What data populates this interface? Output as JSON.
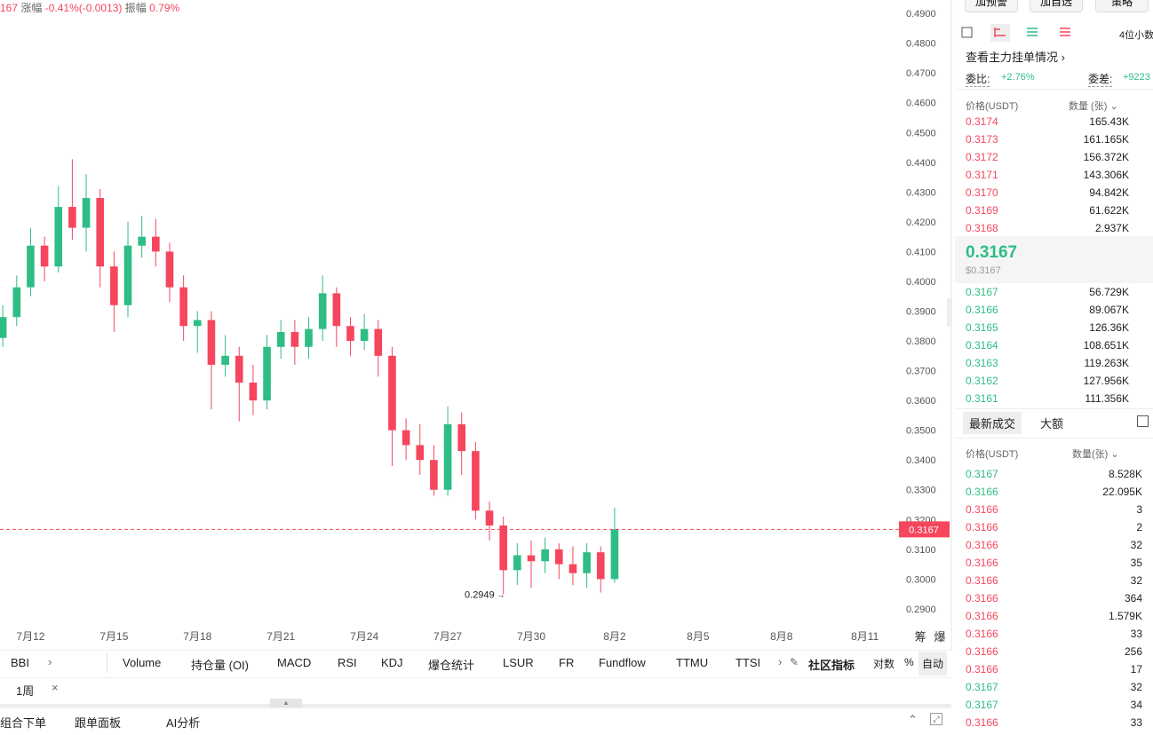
{
  "header": {
    "price_fragment": "167",
    "change_label": "涨幅",
    "change": "-0.41%(-0.0013)",
    "amplitude_label": "振幅",
    "amplitude": "0.79%"
  },
  "chart_data": {
    "type": "candlestick",
    "x": [
      11,
      11.5,
      12,
      12.5,
      13,
      13.5,
      14,
      14.5,
      15,
      15.5,
      16,
      16.5,
      17,
      17.5,
      18,
      18.5,
      19,
      19.5,
      20,
      20.5,
      21,
      21.5,
      22,
      22.5,
      23,
      23.5,
      24,
      24.5,
      25,
      25.5,
      26,
      26.5,
      27,
      27.5,
      28,
      28.5,
      29,
      29.5,
      30,
      30.5,
      31,
      31.5,
      32,
      32.5,
      33
    ],
    "open": [
      0.381,
      0.388,
      0.398,
      0.412,
      0.405,
      0.425,
      0.418,
      0.428,
      0.405,
      0.392,
      0.412,
      0.415,
      0.41,
      0.398,
      0.385,
      0.387,
      0.372,
      0.375,
      0.366,
      0.36,
      0.378,
      0.383,
      0.378,
      0.384,
      0.396,
      0.385,
      0.38,
      0.384,
      0.375,
      0.35,
      0.345,
      0.34,
      0.33,
      0.352,
      0.343,
      0.323,
      0.318,
      0.303,
      0.308,
      0.306,
      0.31,
      0.305,
      0.302,
      0.309,
      0.3
    ],
    "high": [
      0.392,
      0.402,
      0.418,
      0.415,
      0.432,
      0.441,
      0.436,
      0.431,
      0.41,
      0.42,
      0.422,
      0.421,
      0.413,
      0.402,
      0.39,
      0.39,
      0.382,
      0.378,
      0.372,
      0.382,
      0.387,
      0.387,
      0.388,
      0.402,
      0.398,
      0.388,
      0.389,
      0.387,
      0.378,
      0.354,
      0.352,
      0.345,
      0.358,
      0.356,
      0.346,
      0.326,
      0.321,
      0.312,
      0.313,
      0.314,
      0.312,
      0.311,
      0.312,
      0.311,
      0.324
    ],
    "low": [
      0.378,
      0.385,
      0.395,
      0.4,
      0.403,
      0.414,
      0.41,
      0.398,
      0.383,
      0.388,
      0.408,
      0.405,
      0.393,
      0.38,
      0.376,
      0.357,
      0.368,
      0.353,
      0.355,
      0.357,
      0.374,
      0.372,
      0.374,
      0.38,
      0.378,
      0.375,
      0.377,
      0.368,
      0.338,
      0.34,
      0.335,
      0.328,
      0.328,
      0.335,
      0.32,
      0.313,
      0.2949,
      0.298,
      0.297,
      0.302,
      0.3,
      0.298,
      0.297,
      0.2955,
      0.2988
    ],
    "close": [
      0.388,
      0.398,
      0.412,
      0.405,
      0.425,
      0.418,
      0.428,
      0.405,
      0.392,
      0.412,
      0.415,
      0.41,
      0.398,
      0.385,
      0.387,
      0.372,
      0.375,
      0.366,
      0.36,
      0.378,
      0.383,
      0.378,
      0.384,
      0.396,
      0.385,
      0.38,
      0.384,
      0.375,
      0.35,
      0.345,
      0.34,
      0.33,
      0.352,
      0.343,
      0.323,
      0.318,
      0.303,
      0.308,
      0.306,
      0.31,
      0.305,
      0.302,
      0.309,
      0.3,
      0.3167
    ],
    "up_color": "#2ebd85",
    "down_color": "#f6465d",
    "low_marker_index": 36,
    "xlim": [
      10.9,
      43.0
    ],
    "xticks": [
      {
        "value": 12,
        "label": "7月12"
      },
      {
        "value": 15,
        "label": "7月15"
      },
      {
        "value": 18,
        "label": "7月18"
      },
      {
        "value": 21,
        "label": "7月21"
      },
      {
        "value": 24,
        "label": "7月24"
      },
      {
        "value": 27,
        "label": "7月27"
      },
      {
        "value": 30,
        "label": "7月30"
      },
      {
        "value": 33,
        "label": "8月2"
      },
      {
        "value": 36,
        "label": "8月5"
      },
      {
        "value": 39,
        "label": "8月8"
      },
      {
        "value": 42,
        "label": "8月11"
      }
    ],
    "ylim": [
      0.2858,
      0.4945
    ],
    "yticks": [
      {
        "value": 0.29,
        "label": "0.2900"
      },
      {
        "value": 0.3,
        "label": "0.3000"
      },
      {
        "value": 0.31,
        "label": "0.3100"
      },
      {
        "value": 0.32,
        "label": "0.3200"
      },
      {
        "value": 0.33,
        "label": "0.3300"
      },
      {
        "value": 0.34,
        "label": "0.3400"
      },
      {
        "value": 0.35,
        "label": "0.3500"
      },
      {
        "value": 0.36,
        "label": "0.3600"
      },
      {
        "value": 0.37,
        "label": "0.3700"
      },
      {
        "value": 0.38,
        "label": "0.3800"
      },
      {
        "value": 0.39,
        "label": "0.3900"
      },
      {
        "value": 0.4,
        "label": "0.4000"
      },
      {
        "value": 0.41,
        "label": "0.4100"
      },
      {
        "value": 0.42,
        "label": "0.4200"
      },
      {
        "value": 0.43,
        "label": "0.4300"
      },
      {
        "value": 0.44,
        "label": "0.4400"
      },
      {
        "value": 0.45,
        "label": "0.4500"
      },
      {
        "value": 0.46,
        "label": "0.4600"
      },
      {
        "value": 0.47,
        "label": "0.4700"
      },
      {
        "value": 0.48,
        "label": "0.4800"
      },
      {
        "value": 0.49,
        "label": "0.4900"
      }
    ],
    "grid": false
  },
  "chart_side_labels": [
    "筹",
    "爆"
  ],
  "indicator_tabs": [
    "BBI",
    "Volume",
    "持仓量 (OI)",
    "MACD",
    "RSI",
    "KDJ",
    "爆仓统计",
    "LSUR",
    "FR",
    "Fundflow",
    "TTMU",
    "TTSI"
  ],
  "indicator_tools": [
    "社区指标",
    "对数",
    "%",
    "自动"
  ],
  "interval_tab": "1周",
  "bottom_tabs": [
    "组合下单",
    "跟单面板",
    "AI分析"
  ],
  "top_buttons": [
    "加预警",
    "加自选",
    "策略"
  ],
  "order_book": {
    "decimals": "4位小数",
    "main_orders": "查看主力挂单情况",
    "ratio_label": "委比:",
    "ratio": "+2.76%",
    "diff_label": "委差:",
    "diff": "+9223",
    "price_header": "价格(USDT)",
    "qty_header": "数量 (张)",
    "asks": [
      [
        "0.3174",
        "165.43K"
      ],
      [
        "0.3173",
        "161.165K"
      ],
      [
        "0.3172",
        "156.372K"
      ],
      [
        "0.3171",
        "143.306K"
      ],
      [
        "0.3170",
        "94.842K"
      ],
      [
        "0.3169",
        "61.622K"
      ],
      [
        "0.3168",
        "2.937K"
      ]
    ],
    "mid_price": "0.3167",
    "mid_usd": "$0.3167",
    "bids": [
      [
        "0.3167",
        "56.729K"
      ],
      [
        "0.3166",
        "89.067K"
      ],
      [
        "0.3165",
        "126.36K"
      ],
      [
        "0.3164",
        "108.651K"
      ],
      [
        "0.3163",
        "119.263K"
      ],
      [
        "0.3162",
        "127.956K"
      ],
      [
        "0.3161",
        "111.356K"
      ]
    ]
  },
  "trades": {
    "tabs": [
      "最新成交",
      "大额"
    ],
    "price_header": "价格(USDT)",
    "qty_header": "数量(张)",
    "rows": [
      {
        "price": "0.3167",
        "qty": "8.528K",
        "side": "buy"
      },
      {
        "price": "0.3166",
        "qty": "22.095K",
        "side": "buy"
      },
      {
        "price": "0.3166",
        "qty": "3",
        "side": "sell"
      },
      {
        "price": "0.3166",
        "qty": "2",
        "side": "sell"
      },
      {
        "price": "0.3166",
        "qty": "32",
        "side": "sell"
      },
      {
        "price": "0.3166",
        "qty": "35",
        "side": "sell"
      },
      {
        "price": "0.3166",
        "qty": "32",
        "side": "sell"
      },
      {
        "price": "0.3166",
        "qty": "364",
        "side": "sell"
      },
      {
        "price": "0.3166",
        "qty": "1.579K",
        "side": "sell"
      },
      {
        "price": "0.3166",
        "qty": "33",
        "side": "sell"
      },
      {
        "price": "0.3166",
        "qty": "256",
        "side": "sell"
      },
      {
        "price": "0.3166",
        "qty": "17",
        "side": "sell"
      },
      {
        "price": "0.3167",
        "qty": "32",
        "side": "buy"
      },
      {
        "price": "0.3167",
        "qty": "34",
        "side": "buy"
      },
      {
        "price": "0.3166",
        "qty": "33",
        "side": "sell"
      }
    ]
  }
}
